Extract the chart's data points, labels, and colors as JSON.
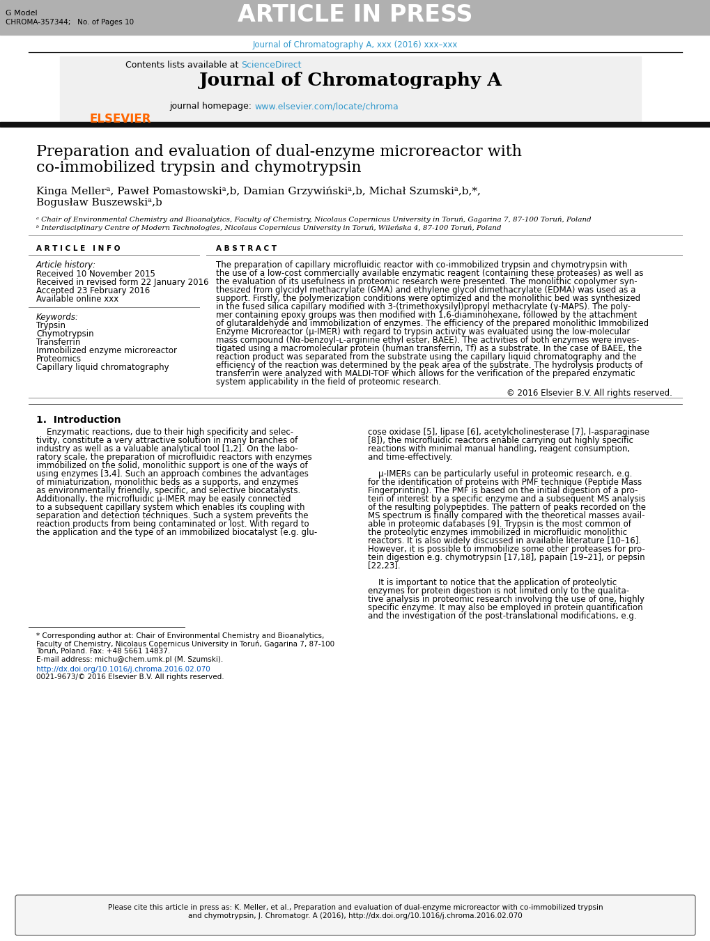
{
  "page_bg": "#ffffff",
  "header_bar_color": "#b0b0b0",
  "header_bar_text": "ARTICLE IN PRESS",
  "header_left_line1": "G Model",
  "header_left_line2": "CHROMA-357344;   No. of Pages 10",
  "journal_ref_line": "Journal of Chromatography A, xxx (2016) xxx–xxx",
  "journal_ref_color": "#3399cc",
  "sciencedirect_color": "#3399cc",
  "journal_homepage_color": "#3399cc",
  "journal_name": "Journal of Chromatography A",
  "journal_homepage_url": "www.elsevier.com/locate/chroma",
  "elsevier_color": "#ff6600",
  "black_bar_color": "#111111",
  "article_title_line1": "Preparation and evaluation of dual-enzyme microreactor with",
  "article_title_line2": "co-immobilized trypsin and chymotrypsin",
  "affil_a": "ᵃ Chair of Environmental Chemistry and Bioanalytics, Faculty of Chemistry, Nicolaus Copernicus University in Toruń, Gagarina 7, 87-100 Toruń, Poland",
  "affil_b": "ᵇ Interdisciplinary Centre of Modern Technologies, Nicolaus Copernicus University in Toruń, Wileńska 4, 87-100 Toruń, Poland",
  "article_info_header": "A R T I C L E   I N F O",
  "abstract_header": "A B S T R A C T",
  "article_history_label": "Article history:",
  "received1": "Received 10 November 2015",
  "received2": "Received in revised form 22 January 2016",
  "accepted": "Accepted 23 February 2016",
  "available": "Available online xxx",
  "keywords_label": "Keywords:",
  "keywords": [
    "Trypsin",
    "Chymotrypsin",
    "Transferrin",
    "Immobilized enzyme microreactor",
    "Proteomics",
    "Capillary liquid chromatography"
  ],
  "copyright_text": "© 2016 Elsevier B.V. All rights reserved.",
  "intro_header": "1.  Introduction",
  "doi_text": "http://dx.doi.org/10.1016/j.chroma.2016.02.070",
  "doi_color": "#0055bb",
  "issn_text": "0021-9673/© 2016 Elsevier B.V. All rights reserved.",
  "corr_line1": "* Corresponding author at: Chair of Environmental Chemistry and Bioanalytics,",
  "corr_line2": "Faculty of Chemistry, Nicolaus Copernicus University in Toruń, Gagarina 7, 87-100",
  "corr_line3": "Toruń, Poland. Fax: +48 5661 14837.",
  "email_line": "E-mail address: michu@chem.umk.pl (M. Szumski).",
  "email_color": "#0055bb",
  "footer_line1": "Please cite this article in press as: K. Meller, et al., Preparation and evaluation of dual-enzyme microreactor with co-immobilized trypsin",
  "footer_line2": "and chymotrypsin, J. Chromatogr. A (2016), http://dx.doi.org/10.1016/j.chroma.2016.02.070",
  "footer_url": "http://dx.doi.org/10.1016/j.chroma.2016.02.070"
}
